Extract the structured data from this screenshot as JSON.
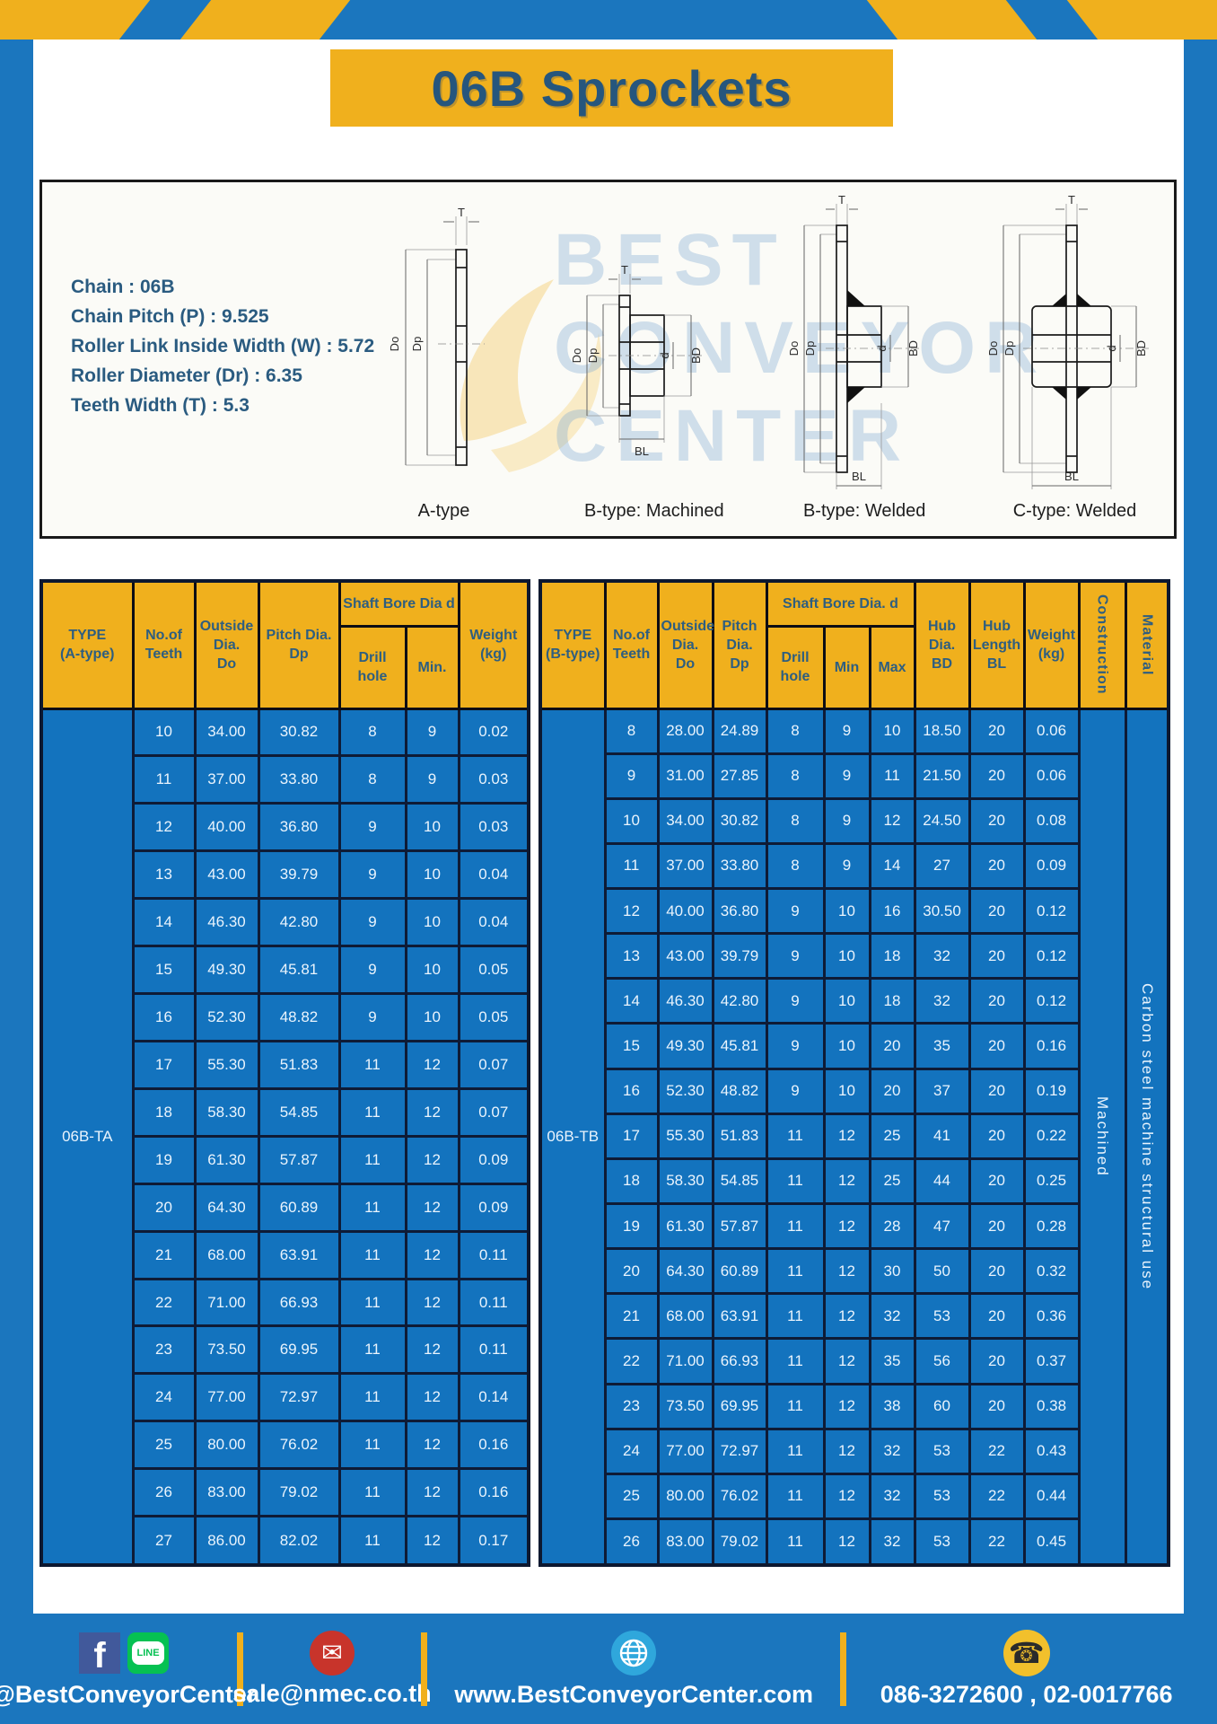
{
  "page": {
    "title": "06B Sprockets",
    "watermark_lines": [
      "BEST",
      "CONVEYOR",
      "CENTER"
    ]
  },
  "specs": {
    "lines": [
      "Chain : 06B",
      "Chain Pitch (P) : 9.525",
      "Roller Link Inside Width (W) : 5.72",
      "Roller Diameter (Dr) : 6.35",
      "Teeth Width (T) : 5.3"
    ]
  },
  "diagrams": [
    {
      "caption": "A-type",
      "labels": {
        "t": "T",
        "do": "Do",
        "dp": "Dp"
      }
    },
    {
      "caption": "B-type: Machined",
      "labels": {
        "t": "T",
        "do": "Do",
        "dp": "Dp",
        "d": "d",
        "bd": "BD",
        "bl": "BL"
      }
    },
    {
      "caption": "B-type: Welded",
      "labels": {
        "t": "T",
        "do": "Do",
        "dp": "Dp",
        "d": "d",
        "bd": "BD",
        "bl": "BL"
      }
    },
    {
      "caption": "C-type: Welded",
      "labels": {
        "t": "T",
        "do": "Do",
        "dp": "Dp",
        "d": "d",
        "bd": "BD",
        "bl": "BL"
      }
    }
  ],
  "table_a": {
    "type_label": "06B-TA",
    "headers": {
      "type": "TYPE\n(A-type)",
      "teeth": "No.of\nTeeth",
      "outside_dia": "Outside\nDia.\nDo",
      "pitch_dia": "Pitch Dia.\nDp",
      "shaft_bore": "Shaft Bore Dia d",
      "drill_hole": "Drill hole",
      "min": "Min.",
      "weight": "Weight\n(kg)"
    },
    "rows": [
      [
        "10",
        "34.00",
        "30.82",
        "8",
        "9",
        "0.02"
      ],
      [
        "11",
        "37.00",
        "33.80",
        "8",
        "9",
        "0.03"
      ],
      [
        "12",
        "40.00",
        "36.80",
        "9",
        "10",
        "0.03"
      ],
      [
        "13",
        "43.00",
        "39.79",
        "9",
        "10",
        "0.04"
      ],
      [
        "14",
        "46.30",
        "42.80",
        "9",
        "10",
        "0.04"
      ],
      [
        "15",
        "49.30",
        "45.81",
        "9",
        "10",
        "0.05"
      ],
      [
        "16",
        "52.30",
        "48.82",
        "9",
        "10",
        "0.05"
      ],
      [
        "17",
        "55.30",
        "51.83",
        "11",
        "12",
        "0.07"
      ],
      [
        "18",
        "58.30",
        "54.85",
        "11",
        "12",
        "0.07"
      ],
      [
        "19",
        "61.30",
        "57.87",
        "11",
        "12",
        "0.09"
      ],
      [
        "20",
        "64.30",
        "60.89",
        "11",
        "12",
        "0.09"
      ],
      [
        "21",
        "68.00",
        "63.91",
        "11",
        "12",
        "0.11"
      ],
      [
        "22",
        "71.00",
        "66.93",
        "11",
        "12",
        "0.11"
      ],
      [
        "23",
        "73.50",
        "69.95",
        "11",
        "12",
        "0.11"
      ],
      [
        "24",
        "77.00",
        "72.97",
        "11",
        "12",
        "0.14"
      ],
      [
        "25",
        "80.00",
        "76.02",
        "11",
        "12",
        "0.16"
      ],
      [
        "26",
        "83.00",
        "79.02",
        "11",
        "12",
        "0.16"
      ],
      [
        "27",
        "86.00",
        "82.02",
        "11",
        "12",
        "0.17"
      ]
    ]
  },
  "table_b": {
    "type_label": "06B-TB",
    "construction": "Machined",
    "material": "Carbon steel machine structural use",
    "headers": {
      "type": "TYPE\n(B-type)",
      "teeth": "No.of\nTeeth",
      "outside_dia": "Outside\nDia.\nDo",
      "pitch_dia": "Pitch\nDia.\nDp",
      "shaft_bore": "Shaft Bore Dia. d",
      "drill_hole": "Drill hole",
      "min": "Min",
      "max": "Max",
      "hub_dia": "Hub\nDia.\nBD",
      "hub_length": "Hub\nLength\nBL",
      "weight": "Weight\n(kg)",
      "construction": "Construction",
      "material": "Material"
    },
    "rows": [
      [
        "8",
        "28.00",
        "24.89",
        "8",
        "9",
        "10",
        "18.50",
        "20",
        "0.06"
      ],
      [
        "9",
        "31.00",
        "27.85",
        "8",
        "9",
        "11",
        "21.50",
        "20",
        "0.06"
      ],
      [
        "10",
        "34.00",
        "30.82",
        "8",
        "9",
        "12",
        "24.50",
        "20",
        "0.08"
      ],
      [
        "11",
        "37.00",
        "33.80",
        "8",
        "9",
        "14",
        "27",
        "20",
        "0.09"
      ],
      [
        "12",
        "40.00",
        "36.80",
        "9",
        "10",
        "16",
        "30.50",
        "20",
        "0.12"
      ],
      [
        "13",
        "43.00",
        "39.79",
        "9",
        "10",
        "18",
        "32",
        "20",
        "0.12"
      ],
      [
        "14",
        "46.30",
        "42.80",
        "9",
        "10",
        "18",
        "32",
        "20",
        "0.12"
      ],
      [
        "15",
        "49.30",
        "45.81",
        "9",
        "10",
        "20",
        "35",
        "20",
        "0.16"
      ],
      [
        "16",
        "52.30",
        "48.82",
        "9",
        "10",
        "20",
        "37",
        "20",
        "0.19"
      ],
      [
        "17",
        "55.30",
        "51.83",
        "11",
        "12",
        "25",
        "41",
        "20",
        "0.22"
      ],
      [
        "18",
        "58.30",
        "54.85",
        "11",
        "12",
        "25",
        "44",
        "20",
        "0.25"
      ],
      [
        "19",
        "61.30",
        "57.87",
        "11",
        "12",
        "28",
        "47",
        "20",
        "0.28"
      ],
      [
        "20",
        "64.30",
        "60.89",
        "11",
        "12",
        "30",
        "50",
        "20",
        "0.32"
      ],
      [
        "21",
        "68.00",
        "63.91",
        "11",
        "12",
        "32",
        "53",
        "20",
        "0.36"
      ],
      [
        "22",
        "71.00",
        "66.93",
        "11",
        "12",
        "35",
        "56",
        "20",
        "0.37"
      ],
      [
        "23",
        "73.50",
        "69.95",
        "11",
        "12",
        "38",
        "60",
        "20",
        "0.38"
      ],
      [
        "24",
        "77.00",
        "72.97",
        "11",
        "12",
        "32",
        "53",
        "22",
        "0.43"
      ],
      [
        "25",
        "80.00",
        "76.02",
        "11",
        "12",
        "32",
        "53",
        "22",
        "0.44"
      ],
      [
        "26",
        "83.00",
        "79.02",
        "11",
        "12",
        "32",
        "53",
        "22",
        "0.45"
      ]
    ]
  },
  "footer": {
    "facebook_letter": "f",
    "line_text": "LINE",
    "mail_glyph": "✉",
    "phone_glyph": "☎",
    "items": [
      {
        "label": "@BestConveyorCenter"
      },
      {
        "label": "sale@nmec.co.th"
      },
      {
        "label": "www.BestConveyorCenter.com"
      },
      {
        "label": "086-3272600 , 02-0017766"
      }
    ]
  }
}
